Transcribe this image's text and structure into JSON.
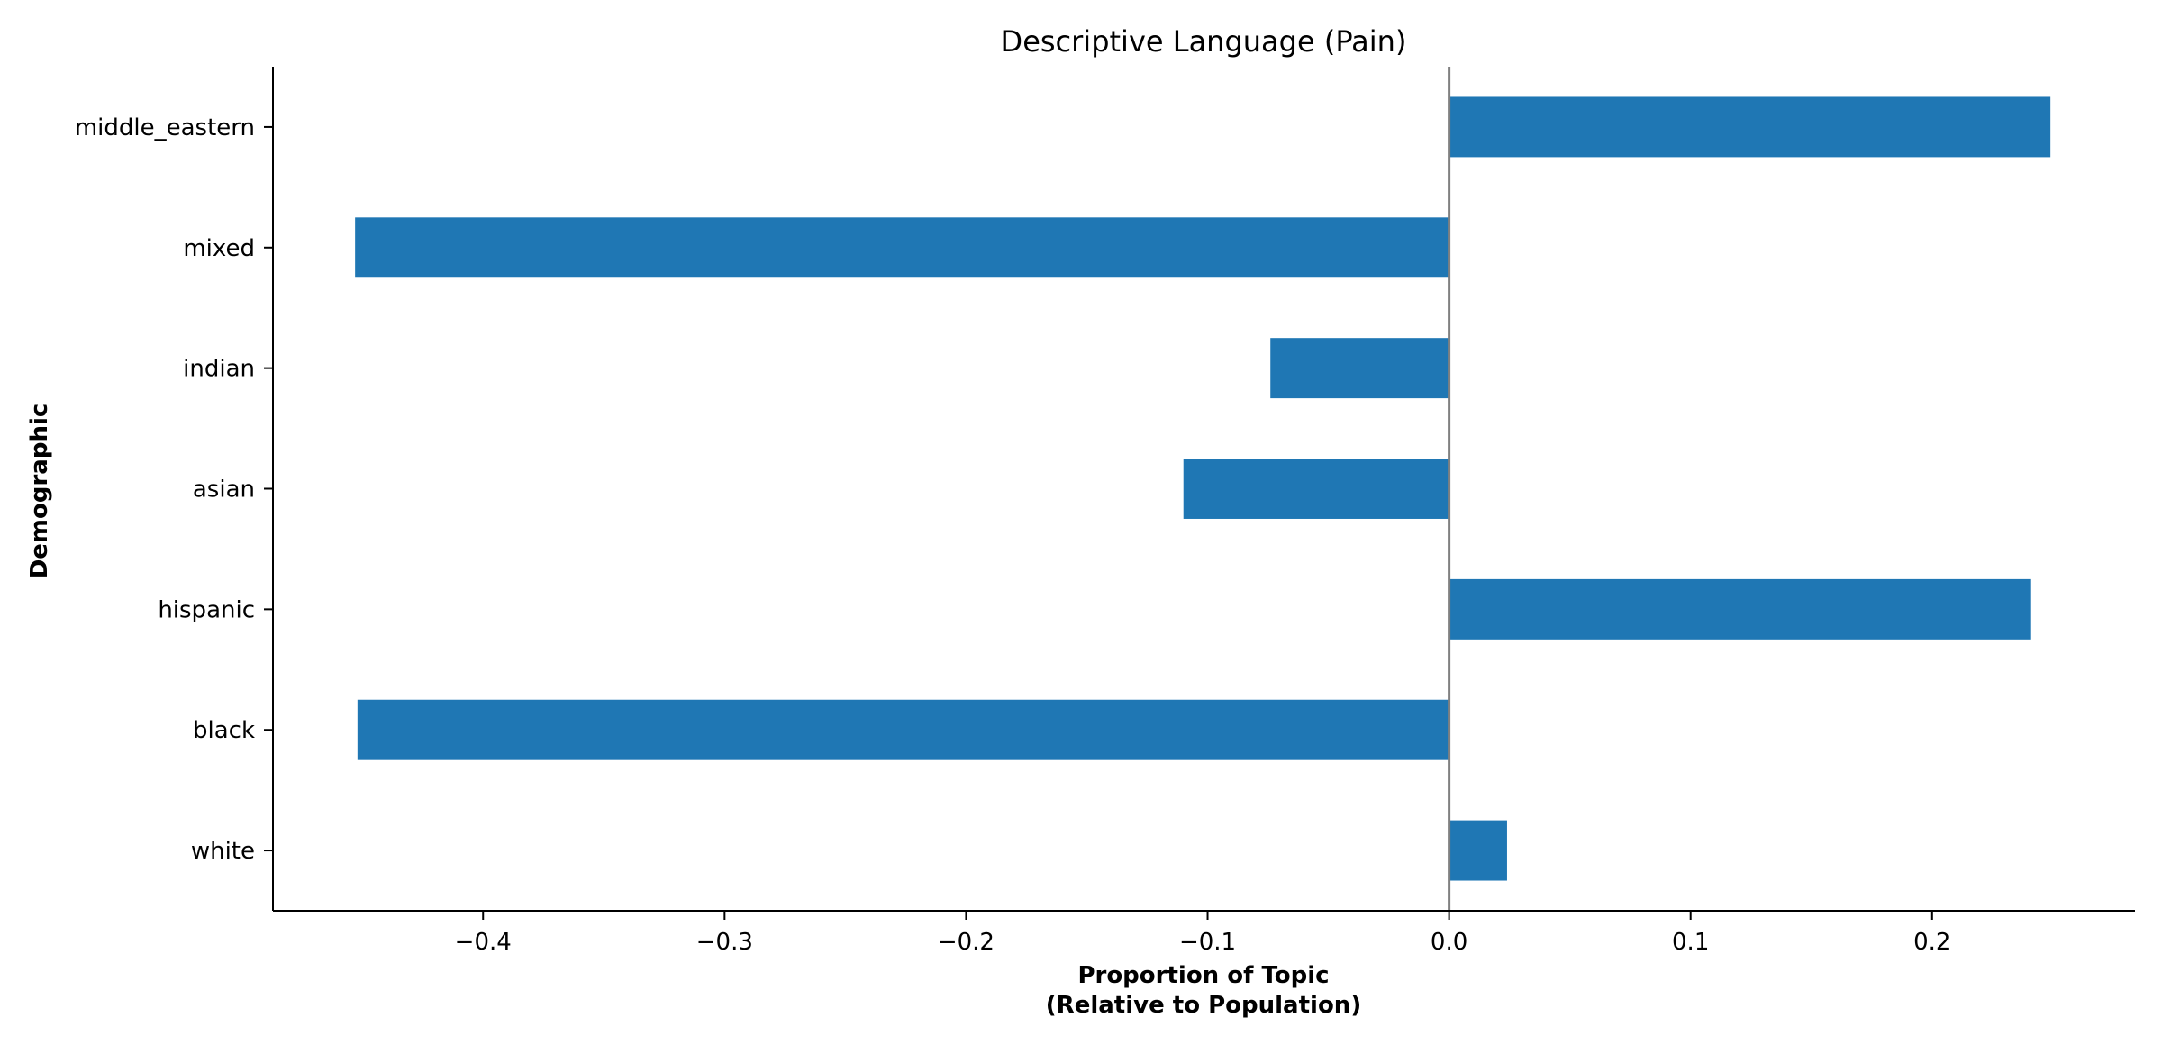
{
  "chart_data": {
    "type": "bar",
    "orientation": "horizontal",
    "title": "Descriptive Language (Pain)",
    "xlabel": [
      "Proportion of Topic",
      "(Relative to Population)"
    ],
    "ylabel": "Demographic",
    "categories": [
      "white",
      "black",
      "hispanic",
      "asian",
      "indian",
      "mixed",
      "middle_eastern"
    ],
    "values": [
      0.024,
      -0.452,
      0.241,
      -0.11,
      -0.074,
      -0.453,
      0.249
    ],
    "xlim": [
      -0.487,
      0.284
    ],
    "xticks": [
      -0.4,
      -0.3,
      -0.2,
      -0.1,
      0.0,
      0.1,
      0.2
    ],
    "xtick_labels": [
      "−0.4",
      "−0.3",
      "−0.2",
      "−0.1",
      "0.0",
      "0.1",
      "0.2"
    ],
    "bar_color": "#1f77b4",
    "zero_line_color": "#808080",
    "grid": false,
    "legend": "none"
  }
}
